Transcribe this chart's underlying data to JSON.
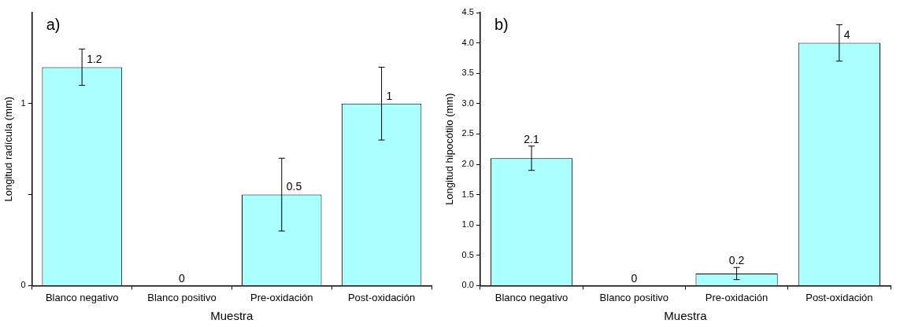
{
  "chart_data": [
    {
      "type": "bar",
      "title": "a)",
      "xlabel": "Muestra",
      "ylabel": "Longitud radícula (mm)",
      "categories": [
        "Blanco negativo",
        "Blanco positivo",
        "Pre-oxidación",
        "Post-oxidación"
      ],
      "values": [
        1.2,
        0,
        0.5,
        1
      ],
      "errors": [
        0.1,
        null,
        0.2,
        0.2
      ],
      "color": "#aaffff",
      "ylim": [
        0,
        1.5
      ],
      "yticks": [
        0,
        {
          "value": 0.5,
          "label": null
        },
        1
      ],
      "data_labels": true,
      "grid": false,
      "legend": false
    },
    {
      "type": "bar",
      "title": "b)",
      "xlabel": "Muestra",
      "ylabel": "Longitud hipocótilo (mm)",
      "categories": [
        "Blanco negativo",
        "Blanco positivo",
        "Pre-oxidación",
        "Post-oxidación"
      ],
      "values": [
        2.1,
        0,
        0.2,
        4
      ],
      "errors": [
        0.2,
        null,
        0.1,
        0.3
      ],
      "color": "#aaffff",
      "ylim": [
        0,
        4.5
      ],
      "yticks": [
        {
          "value": 0,
          "label": "0.0"
        },
        {
          "value": 0.5,
          "label": "0.5"
        },
        {
          "value": 1,
          "label": "1.0"
        },
        {
          "value": 1.5,
          "label": "1.5"
        },
        {
          "value": 2,
          "label": "2.0"
        },
        {
          "value": 2.5,
          "label": "2.5"
        },
        {
          "value": 3,
          "label": "3.0"
        },
        {
          "value": 3.5,
          "label": "3.5"
        },
        {
          "value": 4,
          "label": "4.0"
        },
        {
          "value": 4.5,
          "label": "4.5"
        }
      ],
      "data_labels": true,
      "grid": false,
      "legend": false
    }
  ]
}
